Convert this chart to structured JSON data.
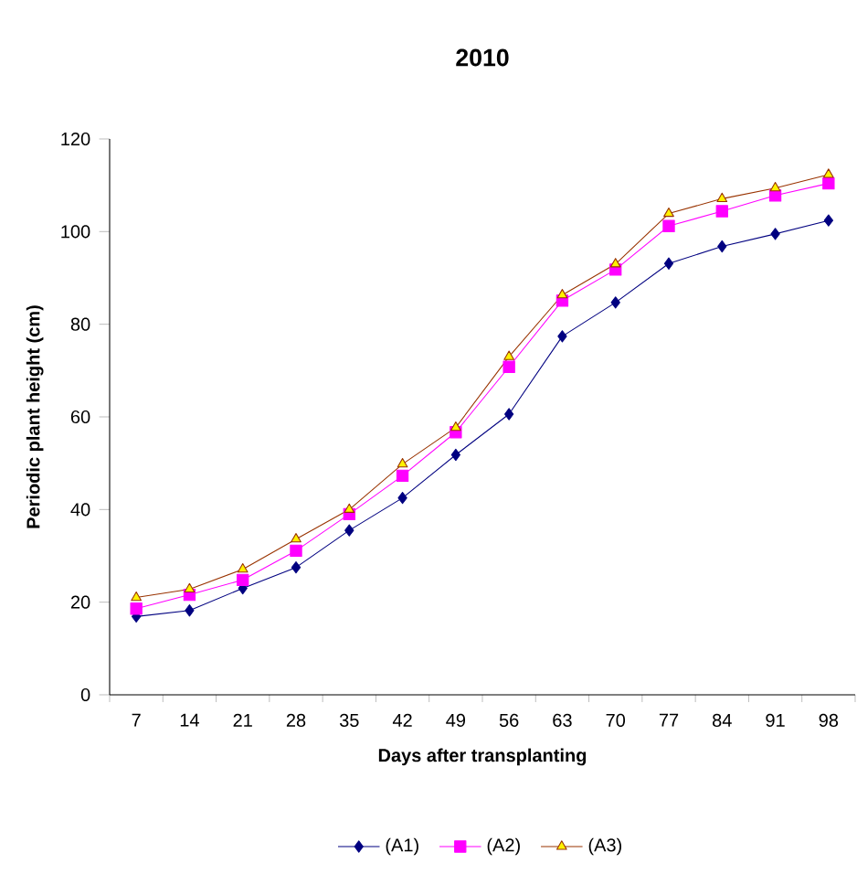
{
  "chart_data": {
    "type": "line",
    "title": "2010",
    "xlabel": "Days after transplanting",
    "ylabel": "Periodic plant height (cm)",
    "categories": [
      "7",
      "14",
      "21",
      "28",
      "35",
      "42",
      "49",
      "56",
      "63",
      "70",
      "77",
      "84",
      "91",
      "98"
    ],
    "ylim": [
      0,
      120
    ],
    "yticks": [
      0,
      20,
      40,
      60,
      80,
      100,
      120
    ],
    "grid": false,
    "legend": "bottom",
    "line_style": "solid",
    "series": [
      {
        "name": "(A1)",
        "color": "#000080",
        "marker": "diamond",
        "values": [
          16.9,
          18.2,
          23,
          27.5,
          35.5,
          42.5,
          51.8,
          60.6,
          77.4,
          84.7,
          93.1,
          96.8,
          99.5,
          102.4
        ]
      },
      {
        "name": "(A2)",
        "color": "#ff00ff",
        "marker": "square",
        "values": [
          18.6,
          21.6,
          24.8,
          31.1,
          39,
          47.3,
          56.7,
          70.8,
          85.1,
          91.8,
          101.2,
          104.4,
          107.8,
          110.4
        ]
      },
      {
        "name": "(A3)",
        "color": "#993300",
        "marker": "triangle",
        "values": [
          21,
          22.8,
          27.1,
          33.6,
          40,
          49.8,
          57.7,
          73,
          86.3,
          93,
          103.9,
          107.1,
          109.4,
          112.3
        ]
      }
    ]
  }
}
